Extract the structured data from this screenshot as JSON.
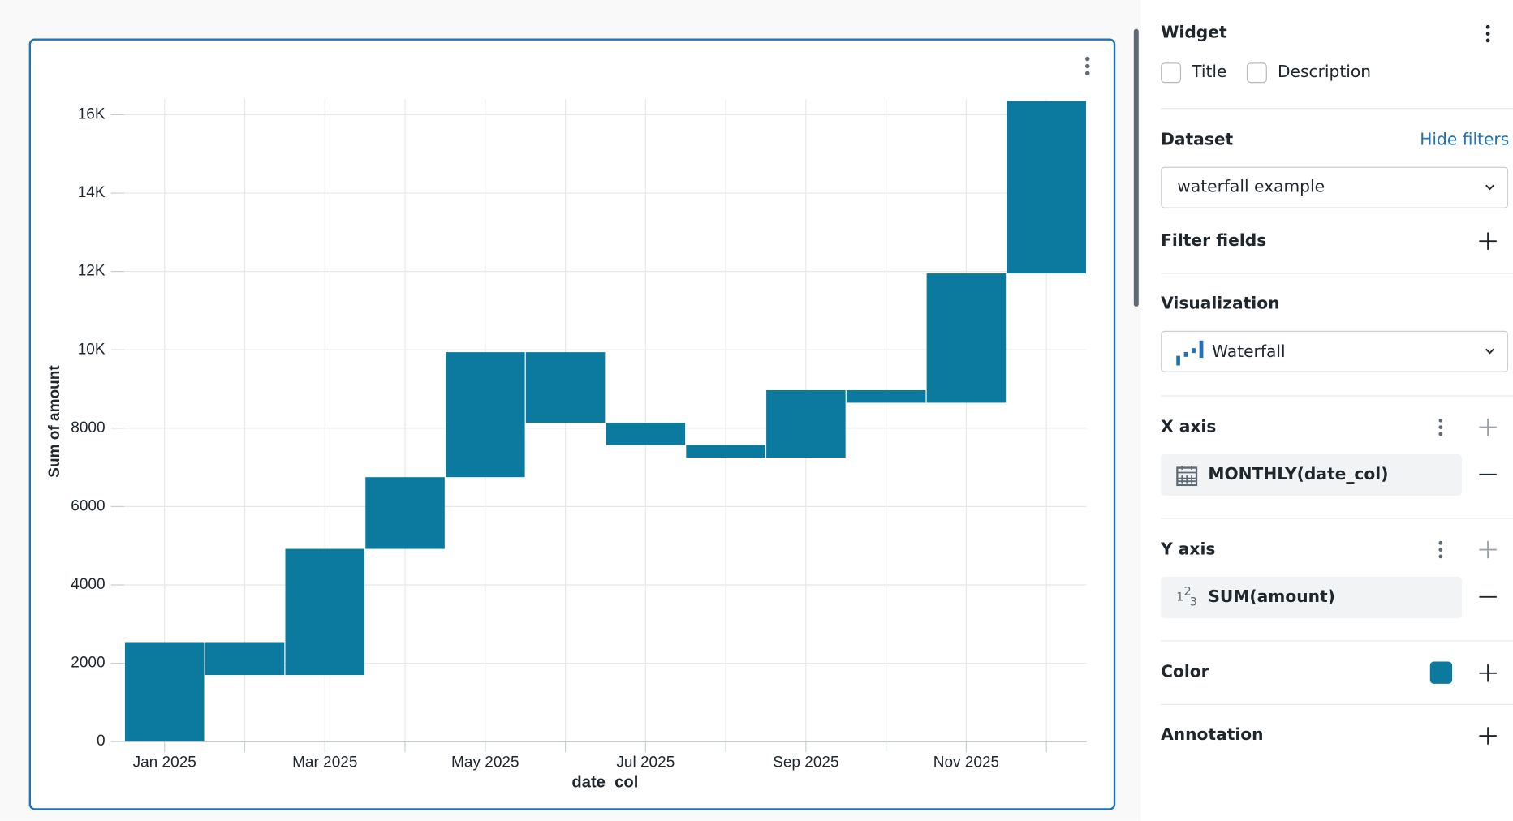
{
  "chart_data": {
    "type": "waterfall",
    "y_label": "Sum of amount",
    "x_label": "date_col",
    "categories": [
      "Jan 2025",
      null,
      "Mar 2025",
      null,
      "May 2025",
      null,
      "Jul 2025",
      null,
      "Sep 2025",
      null,
      "Nov 2025",
      null
    ],
    "values": [
      2540,
      -840,
      3220,
      1830,
      3190,
      -1800,
      -570,
      -320,
      1720,
      -320,
      3300,
      4400
    ],
    "color": "#0b7a9e",
    "ylim": [
      0,
      16400
    ],
    "yticks": [
      0,
      2000,
      4000,
      6000,
      8000,
      {
        "value": 10000,
        "label": "10K"
      },
      {
        "value": 12000,
        "label": "12K"
      },
      {
        "value": 14000,
        "label": "14K"
      },
      {
        "value": 16000,
        "label": "16K"
      }
    ],
    "grid": true
  },
  "panel": {
    "widget": {
      "label": "Widget",
      "options": [
        "Title",
        "Description"
      ]
    },
    "dataset": {
      "label": "Dataset",
      "action": "Hide filters",
      "value": "waterfall example"
    },
    "filter_fields": "Filter fields",
    "visualization": {
      "label": "Visualization",
      "value": "Waterfall"
    },
    "x_axis": {
      "label": "X axis",
      "field": "MONTHLY(date_col)"
    },
    "y_axis": {
      "label": "Y axis",
      "field": "SUM(amount)",
      "icon": [
        "1",
        "2",
        "3"
      ]
    },
    "color": "Color",
    "annotation": "Annotation"
  }
}
